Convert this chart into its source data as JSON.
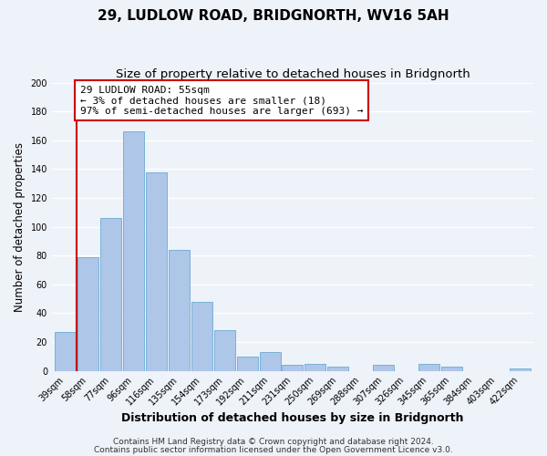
{
  "title1": "29, LUDLOW ROAD, BRIDGNORTH, WV16 5AH",
  "title2": "Size of property relative to detached houses in Bridgnorth",
  "xlabel": "Distribution of detached houses by size in Bridgnorth",
  "ylabel": "Number of detached properties",
  "bar_labels": [
    "39sqm",
    "58sqm",
    "77sqm",
    "96sqm",
    "116sqm",
    "135sqm",
    "154sqm",
    "173sqm",
    "192sqm",
    "211sqm",
    "231sqm",
    "250sqm",
    "269sqm",
    "288sqm",
    "307sqm",
    "326sqm",
    "345sqm",
    "365sqm",
    "384sqm",
    "403sqm",
    "422sqm"
  ],
  "bar_values": [
    27,
    79,
    106,
    166,
    138,
    84,
    48,
    28,
    10,
    13,
    4,
    5,
    3,
    0,
    4,
    0,
    5,
    3,
    0,
    0,
    2
  ],
  "bar_color": "#aec6e8",
  "bar_edge_color": "#6aaad4",
  "ylim": [
    0,
    200
  ],
  "yticks": [
    0,
    20,
    40,
    60,
    80,
    100,
    120,
    140,
    160,
    180,
    200
  ],
  "annotation_title": "29 LUDLOW ROAD: 55sqm",
  "annotation_line1": "← 3% of detached houses are smaller (18)",
  "annotation_line2": "97% of semi-detached houses are larger (693) →",
  "footer1": "Contains HM Land Registry data © Crown copyright and database right 2024.",
  "footer2": "Contains public sector information licensed under the Open Government Licence v3.0.",
  "bg_color": "#eef2f9",
  "grid_color": "#ffffff",
  "annotation_box_color": "#ffffff",
  "annotation_box_edge": "#cc0000",
  "vline_color": "#cc0000",
  "title1_fontsize": 11,
  "title2_fontsize": 9.5,
  "xlabel_fontsize": 9,
  "ylabel_fontsize": 8.5,
  "tick_fontsize": 7,
  "annotation_fontsize": 8,
  "footer_fontsize": 6.5
}
